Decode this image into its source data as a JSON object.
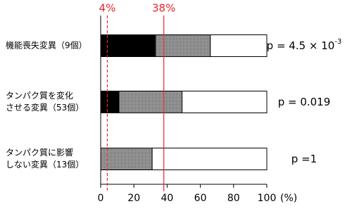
{
  "chart_data": {
    "type": "stacked-bar-horizontal",
    "categories": [
      [
        "機能喪失変異（9個）"
      ],
      [
        "タンパク質を変化",
        "させる変異（53個）"
      ],
      [
        "タンパク質に影響",
        "しない変異（13個）"
      ]
    ],
    "series": [
      {
        "color": "#000000",
        "values": [
          33,
          11,
          0
        ]
      },
      {
        "color": "#808080",
        "pattern": "dots",
        "values": [
          33,
          38,
          31
        ]
      },
      {
        "color": "#ffffff",
        "values": [
          34,
          51,
          69
        ]
      }
    ],
    "xlim": [
      0,
      100
    ],
    "xticks": [
      0,
      20,
      40,
      60,
      80,
      100
    ],
    "x_unit": "(%)",
    "reference_lines": [
      {
        "value": 4,
        "label": "4%",
        "style": "dashed",
        "color": "#e8262b"
      },
      {
        "value": 38,
        "label": "38%",
        "style": "solid",
        "color": "#e8262b"
      }
    ],
    "annotations": [
      {
        "text": "p = 4.5 × 10",
        "superscript": "-3"
      },
      {
        "text": "p = 0.019"
      },
      {
        "text": "p =1"
      }
    ]
  }
}
